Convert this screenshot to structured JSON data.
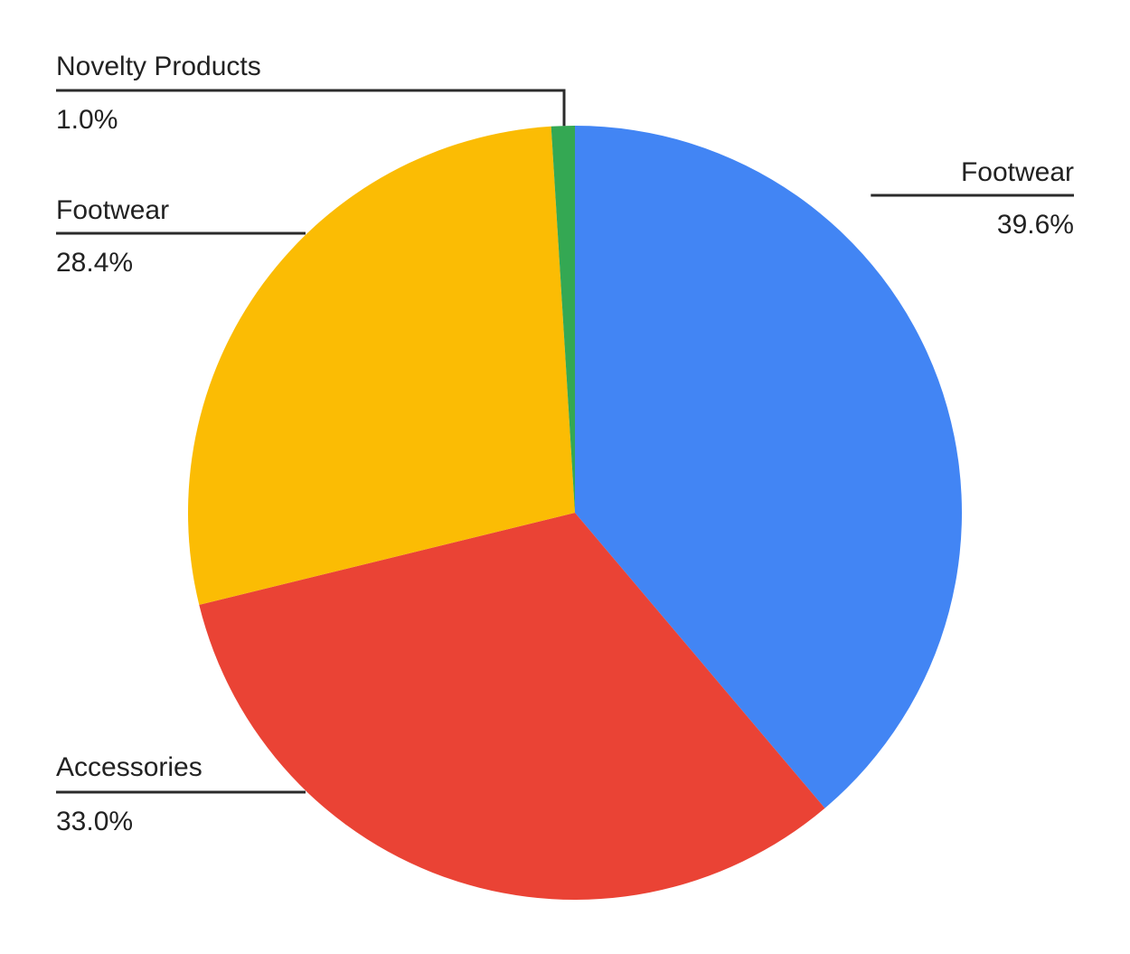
{
  "chart_data": {
    "type": "pie",
    "title": "",
    "start_angle_deg": 0,
    "direction": "clockwise",
    "slices": [
      {
        "label": "Footwear",
        "value": 39.6,
        "value_label": "39.6%",
        "color": "#4285F4"
      },
      {
        "label": "Accessories",
        "value": 33.0,
        "value_label": "33.0%",
        "color": "#EA4335"
      },
      {
        "label": "Footwear",
        "value": 28.4,
        "value_label": "28.4%",
        "color": "#FBBC04"
      },
      {
        "label": "Novelty Products",
        "value": 1.0,
        "value_label": "1.0%",
        "color": "#34A853"
      }
    ]
  }
}
